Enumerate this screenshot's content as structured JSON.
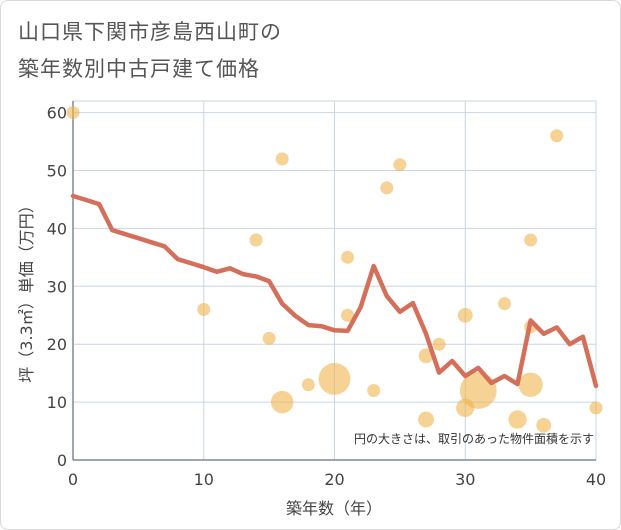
{
  "title_lines": [
    "山口県下関市彦島西山町の",
    "築年数別中古戸建て価格"
  ],
  "chart_data": {
    "type": "scatter",
    "xlabel": "築年数（年）",
    "ylabel": "坪（3.3㎡）単価（万円）",
    "xlim": [
      0,
      40
    ],
    "ylim": [
      0,
      62
    ],
    "xticks": [
      0,
      10,
      20,
      30,
      40
    ],
    "yticks": [
      0,
      10,
      20,
      30,
      40,
      50,
      60
    ],
    "note": "円の大きさは、取引のあった物件面積を示す",
    "colors": {
      "bubble": "#f0b44c",
      "line": "#d4705a",
      "grid": "#c9d6e3"
    },
    "trend_line": {
      "x": [
        0,
        1,
        2,
        3,
        4,
        5,
        6,
        7,
        8,
        9,
        10,
        11,
        12,
        13,
        14,
        15,
        16,
        17,
        18,
        19,
        20,
        21,
        22,
        23,
        24,
        25,
        26,
        27,
        28,
        29,
        30,
        31,
        32,
        33,
        34,
        35,
        36,
        37,
        38,
        39,
        40
      ],
      "y": [
        45.6,
        44.9,
        44.2,
        39.7,
        39.0,
        38.3,
        37.6,
        36.9,
        34.7,
        34.0,
        33.3,
        32.5,
        33.1,
        32.1,
        31.7,
        30.9,
        27.0,
        24.9,
        23.3,
        23.1,
        22.4,
        22.3,
        26.4,
        33.5,
        28.3,
        25.6,
        27.1,
        21.8,
        15.1,
        17.1,
        14.5,
        15.9,
        13.3,
        14.5,
        13.1,
        24.1,
        21.8,
        22.9,
        20.0,
        21.3,
        12.8
      ]
    },
    "bubbles": [
      {
        "x": 0,
        "y": 60,
        "size": 1
      },
      {
        "x": 10,
        "y": 26,
        "size": 1
      },
      {
        "x": 14,
        "y": 38,
        "size": 1
      },
      {
        "x": 15,
        "y": 21,
        "size": 1
      },
      {
        "x": 16,
        "y": 52,
        "size": 1
      },
      {
        "x": 16,
        "y": 10,
        "size": 3
      },
      {
        "x": 18,
        "y": 13,
        "size": 1
      },
      {
        "x": 20,
        "y": 14,
        "size": 6
      },
      {
        "x": 21,
        "y": 35,
        "size": 1
      },
      {
        "x": 21,
        "y": 25,
        "size": 1
      },
      {
        "x": 23,
        "y": 12,
        "size": 1
      },
      {
        "x": 24,
        "y": 47,
        "size": 1
      },
      {
        "x": 25,
        "y": 51,
        "size": 1
      },
      {
        "x": 27,
        "y": 18,
        "size": 1.3
      },
      {
        "x": 27,
        "y": 7,
        "size": 1.5
      },
      {
        "x": 28,
        "y": 20,
        "size": 1
      },
      {
        "x": 30,
        "y": 25,
        "size": 1.3
      },
      {
        "x": 30,
        "y": 9,
        "size": 2
      },
      {
        "x": 31,
        "y": 12,
        "size": 8
      },
      {
        "x": 33,
        "y": 27,
        "size": 1
      },
      {
        "x": 34,
        "y": 7,
        "size": 2
      },
      {
        "x": 35,
        "y": 38,
        "size": 1
      },
      {
        "x": 35,
        "y": 23,
        "size": 1
      },
      {
        "x": 35,
        "y": 13,
        "size": 3.5
      },
      {
        "x": 36,
        "y": 6,
        "size": 1.3
      },
      {
        "x": 37,
        "y": 56,
        "size": 1
      },
      {
        "x": 40,
        "y": 9,
        "size": 1
      }
    ]
  }
}
